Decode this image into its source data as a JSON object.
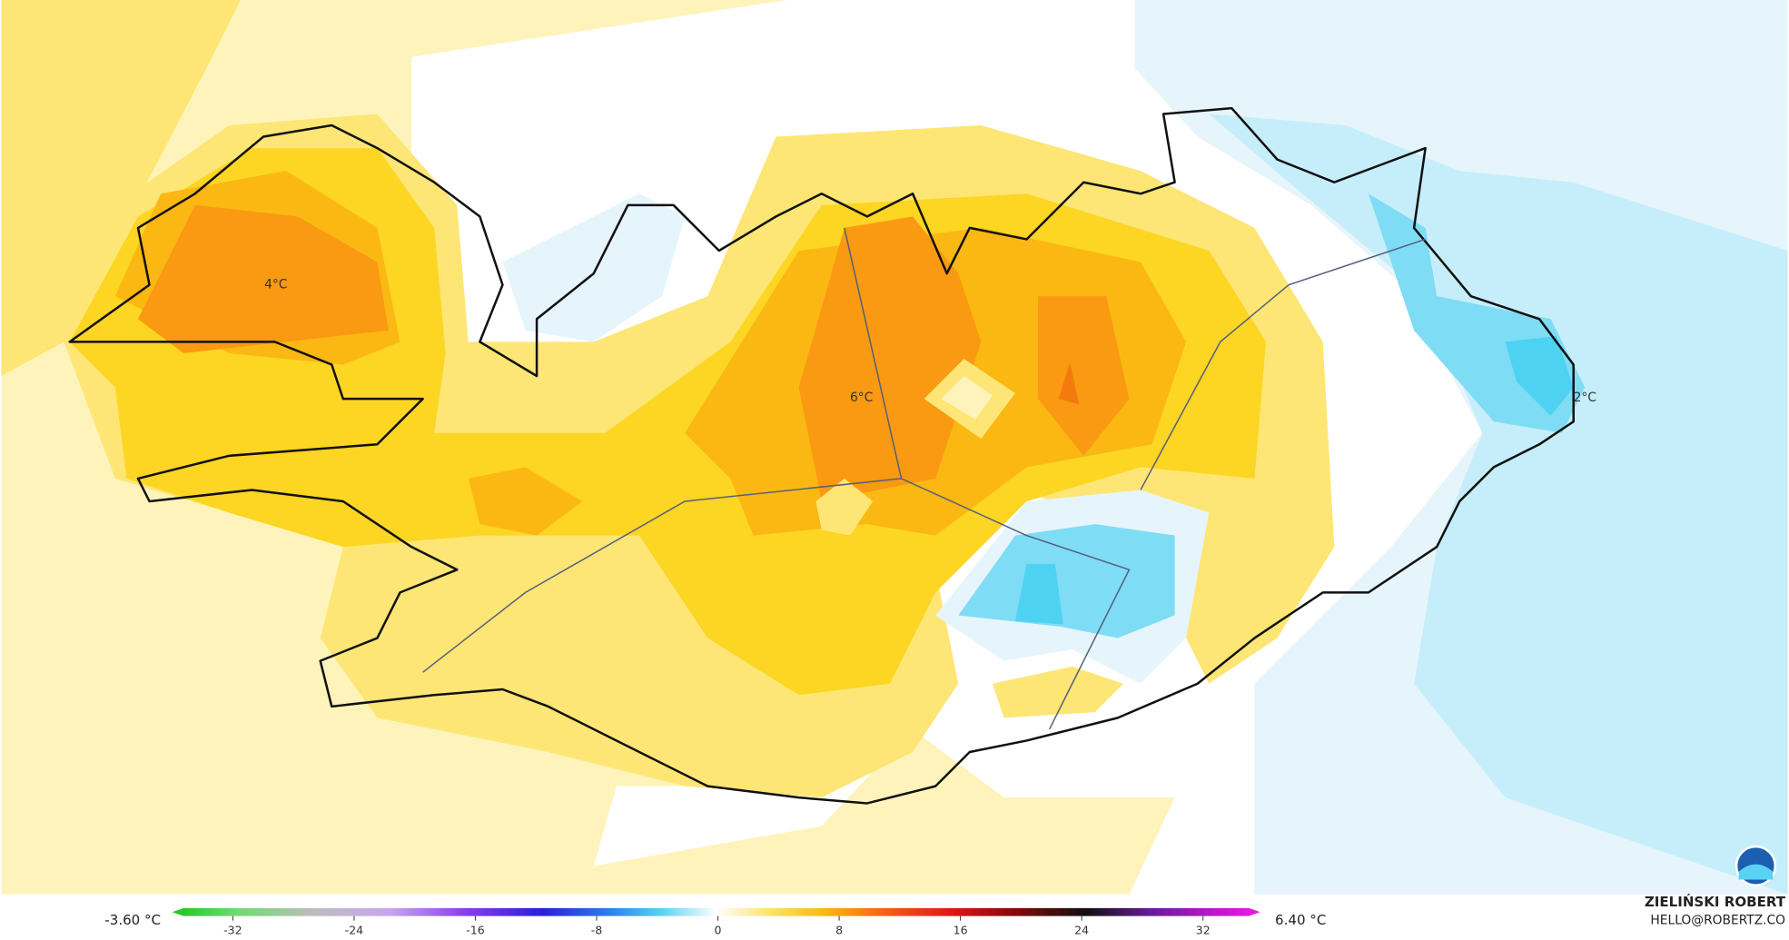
{
  "map_labels": [
    "4°C",
    "6°C",
    "2°C"
  ],
  "colorbar": {
    "min_label": "-3.60 °C",
    "max_label": "6.40 °C",
    "lim": [
      -36,
      36
    ],
    "ticks": [
      -32,
      -24,
      -16,
      -8,
      0,
      8,
      16,
      24,
      32
    ]
  },
  "credit": {
    "name": "ZIELIŃSKI ROBERT",
    "email": "HELLO@ROBERTZ.CO"
  }
}
